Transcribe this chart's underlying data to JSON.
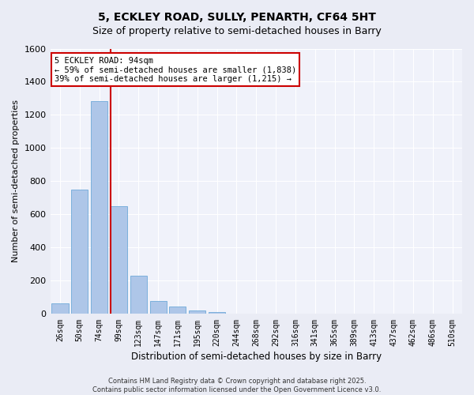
{
  "title1": "5, ECKLEY ROAD, SULLY, PENARTH, CF64 5HT",
  "title2": "Size of property relative to semi-detached houses in Barry",
  "xlabel": "Distribution of semi-detached houses by size in Barry",
  "ylabel": "Number of semi-detached properties",
  "bar_values": [
    65,
    750,
    1285,
    650,
    230,
    80,
    45,
    22,
    12,
    0,
    0,
    0,
    0,
    0,
    0,
    0,
    0,
    0,
    0,
    0,
    0
  ],
  "categories": [
    "26sqm",
    "50sqm",
    "74sqm",
    "99sqm",
    "123sqm",
    "147sqm",
    "171sqm",
    "195sqm",
    "220sqm",
    "244sqm",
    "268sqm",
    "292sqm",
    "316sqm",
    "341sqm",
    "365sqm",
    "389sqm",
    "413sqm",
    "437sqm",
    "462sqm",
    "486sqm",
    "510sqm"
  ],
  "bar_color": "#aec6e8",
  "bar_edge_color": "#5a9fd4",
  "vline_color": "#cc0000",
  "annotation_lines": [
    "5 ECKLEY ROAD: 94sqm",
    "← 59% of semi-detached houses are smaller (1,838)",
    "39% of semi-detached houses are larger (1,215) →"
  ],
  "ylim": [
    0,
    1600
  ],
  "yticks": [
    0,
    200,
    400,
    600,
    800,
    1000,
    1200,
    1400,
    1600
  ],
  "bg_color": "#eaecf5",
  "plot_bg_color": "#f0f2fa",
  "grid_color": "#ffffff",
  "footer1": "Contains HM Land Registry data © Crown copyright and database right 2025.",
  "footer2": "Contains public sector information licensed under the Open Government Licence v3.0."
}
